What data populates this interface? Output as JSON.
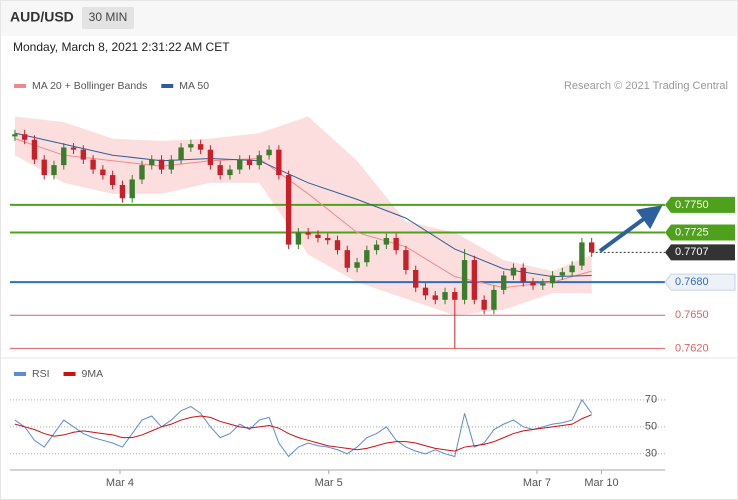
{
  "chart_data": [
    {
      "type": "candlestick",
      "title": "AUD/USD",
      "timeframe": "30 MIN",
      "subtitle": "Monday, March 8, 2021 2:31:22 AM CET",
      "credit": "Research © 2021 Trading Central",
      "xlim": [
        -0.5,
        66.5
      ],
      "ylim": [
        0.7614,
        0.7845
      ],
      "up_color": "#3a7d2c",
      "down_color": "#c8202a",
      "open": [
        0.7812,
        0.7814,
        0.7809,
        0.7791,
        0.7777,
        0.7786,
        0.7802,
        0.78,
        0.7791,
        0.7782,
        0.7777,
        0.7768,
        0.7756,
        0.7773,
        0.7786,
        0.7791,
        0.7782,
        0.7791,
        0.7802,
        0.7805,
        0.78,
        0.7786,
        0.7777,
        0.7782,
        0.7791,
        0.7786,
        0.7795,
        0.78,
        0.7777,
        0.7714,
        0.7725,
        0.7723,
        0.772,
        0.7718,
        0.7709,
        0.7693,
        0.7698,
        0.7709,
        0.7714,
        0.772,
        0.7709,
        0.7691,
        0.7675,
        0.7668,
        0.7664,
        0.7671,
        0.7664,
        0.77,
        0.7664,
        0.7655,
        0.7673,
        0.7686,
        0.7693,
        0.768,
        0.7677,
        0.7679,
        0.7686,
        0.7689,
        0.7695,
        0.7716
      ],
      "high": [
        0.7818,
        0.7818,
        0.7813,
        0.7795,
        0.779,
        0.7806,
        0.7806,
        0.7804,
        0.7795,
        0.7786,
        0.7781,
        0.7772,
        0.7777,
        0.779,
        0.7795,
        0.7795,
        0.7795,
        0.7806,
        0.7809,
        0.7809,
        0.7804,
        0.779,
        0.7786,
        0.7795,
        0.7795,
        0.7799,
        0.7804,
        0.7804,
        0.7781,
        0.7729,
        0.7729,
        0.7727,
        0.7724,
        0.7722,
        0.7713,
        0.7702,
        0.7713,
        0.7718,
        0.7724,
        0.7724,
        0.7713,
        0.7695,
        0.7679,
        0.7672,
        0.7675,
        0.7675,
        0.771,
        0.7704,
        0.7668,
        0.7677,
        0.769,
        0.7697,
        0.7697,
        0.7684,
        0.7683,
        0.769,
        0.7693,
        0.7699,
        0.772,
        0.772
      ],
      "low": [
        0.7808,
        0.7805,
        0.7787,
        0.7773,
        0.7773,
        0.7782,
        0.7796,
        0.7787,
        0.7778,
        0.7773,
        0.7764,
        0.7752,
        0.7752,
        0.7769,
        0.7782,
        0.7778,
        0.7778,
        0.7787,
        0.7798,
        0.7796,
        0.7782,
        0.7773,
        0.7773,
        0.7778,
        0.7782,
        0.7782,
        0.7791,
        0.7773,
        0.771,
        0.771,
        0.7719,
        0.7716,
        0.7714,
        0.7705,
        0.7689,
        0.7689,
        0.7694,
        0.7705,
        0.771,
        0.7705,
        0.7687,
        0.7671,
        0.7664,
        0.766,
        0.766,
        0.762,
        0.766,
        0.766,
        0.7651,
        0.7651,
        0.7669,
        0.7682,
        0.7676,
        0.7673,
        0.7673,
        0.7675,
        0.7682,
        0.7685,
        0.7691,
        0.7703
      ],
      "close": [
        0.7814,
        0.7809,
        0.7791,
        0.7777,
        0.7786,
        0.7802,
        0.78,
        0.7791,
        0.7782,
        0.7777,
        0.7768,
        0.7756,
        0.7773,
        0.7786,
        0.7791,
        0.7782,
        0.7791,
        0.7802,
        0.7805,
        0.78,
        0.7786,
        0.7777,
        0.7782,
        0.7791,
        0.7786,
        0.7795,
        0.78,
        0.7777,
        0.7714,
        0.7725,
        0.7723,
        0.772,
        0.7718,
        0.7709,
        0.7693,
        0.7698,
        0.7709,
        0.7714,
        0.772,
        0.7709,
        0.7691,
        0.7675,
        0.7668,
        0.7664,
        0.7671,
        0.7664,
        0.77,
        0.7664,
        0.7655,
        0.7673,
        0.7686,
        0.7693,
        0.768,
        0.7677,
        0.7679,
        0.7686,
        0.7689,
        0.7695,
        0.7716,
        0.7707
      ],
      "series": [
        {
          "name": "MA 20 + Bollinger Bands",
          "color": "#f08a8a",
          "band_color": "#fbd3d3",
          "x": [
            0,
            5,
            10,
            15,
            20,
            25,
            30,
            35,
            40,
            45,
            50,
            55,
            59
          ],
          "values": [
            0.781,
            0.7795,
            0.779,
            0.7785,
            0.779,
            0.7792,
            0.776,
            0.7725,
            0.7712,
            0.7685,
            0.7675,
            0.768,
            0.769
          ],
          "upper": [
            0.783,
            0.7825,
            0.781,
            0.7808,
            0.781,
            0.7815,
            0.783,
            0.779,
            0.7735,
            0.7725,
            0.77,
            0.769,
            0.7705
          ],
          "lower": [
            0.7795,
            0.777,
            0.776,
            0.776,
            0.777,
            0.777,
            0.7705,
            0.768,
            0.7665,
            0.765,
            0.7655,
            0.767,
            0.767
          ]
        },
        {
          "name": "MA 50",
          "color": "#2d5f9a",
          "x": [
            0,
            5,
            10,
            15,
            20,
            25,
            30,
            35,
            40,
            45,
            50,
            55,
            59
          ],
          "values": [
            0.7815,
            0.7805,
            0.7795,
            0.779,
            0.7792,
            0.779,
            0.777,
            0.7755,
            0.7738,
            0.771,
            0.7692,
            0.7685,
            0.7686
          ]
        }
      ],
      "levels": [
        {
          "value": 0.775,
          "label": "0.7750",
          "color": "#4ea11a",
          "boxed": true,
          "dashed": false
        },
        {
          "value": 0.7725,
          "label": "0.7725",
          "color": "#4ea11a",
          "boxed": true,
          "dashed": false
        },
        {
          "value": 0.7707,
          "label": "0.7707",
          "color": "#333333",
          "boxed": true,
          "dashed": true
        },
        {
          "value": 0.768,
          "label": "0.7680",
          "color": "#2d6fbf",
          "boxed": false,
          "dashed": false
        },
        {
          "value": 0.765,
          "label": "0.7650",
          "color": "#e06060",
          "boxed": false,
          "dashed": false
        },
        {
          "value": 0.762,
          "label": "0.7620",
          "color": "#e06060",
          "boxed": false,
          "dashed": false
        }
      ]
    },
    {
      "type": "line",
      "xlim": [
        -0.5,
        66.5
      ],
      "ylim": [
        18,
        81
      ],
      "yticks": [
        30,
        50,
        70
      ],
      "xticks": [
        {
          "value": 10.75,
          "label": "Mar 4"
        },
        {
          "value": 32.1,
          "label": "Mar 5"
        },
        {
          "value": 53.4,
          "label": "Mar 7"
        },
        {
          "value": 60,
          "label": "Mar 10"
        }
      ],
      "series": [
        {
          "name": "RSI",
          "color": "#5b8bd6",
          "values": [
            55,
            50,
            40,
            35,
            45,
            55,
            50,
            45,
            42,
            40,
            38,
            35,
            45,
            55,
            58,
            50,
            55,
            62,
            65,
            60,
            50,
            42,
            45,
            52,
            48,
            55,
            57,
            38,
            28,
            35,
            38,
            36,
            35,
            33,
            30,
            35,
            42,
            45,
            50,
            40,
            35,
            32,
            30,
            33,
            30,
            28,
            60,
            35,
            38,
            48,
            52,
            55,
            50,
            48,
            50,
            52,
            53,
            55,
            70,
            60
          ]
        },
        {
          "name": "9MA",
          "color": "#cc1111",
          "values": [
            52,
            50,
            48,
            45,
            43,
            44,
            46,
            47,
            46,
            45,
            44,
            42,
            42,
            44,
            47,
            50,
            52,
            55,
            57,
            58,
            57,
            54,
            52,
            50,
            49,
            50,
            51,
            49,
            45,
            42,
            40,
            38,
            36,
            35,
            34,
            33,
            34,
            36,
            38,
            39,
            39,
            38,
            36,
            34,
            33,
            32,
            35,
            36,
            37,
            39,
            42,
            45,
            47,
            48,
            49,
            50,
            51,
            52,
            56,
            59
          ]
        }
      ]
    }
  ]
}
